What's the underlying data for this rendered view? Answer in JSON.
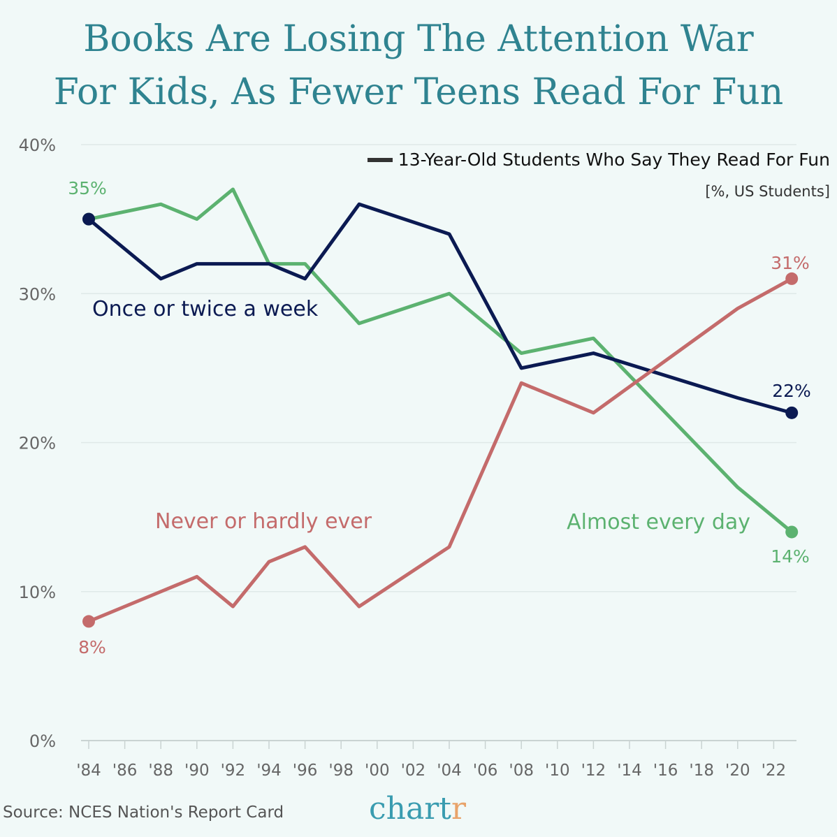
{
  "title_line1": "Books Are Losing The Attention War",
  "title_line2": "For Kids, As Fewer Teens Read For Fun",
  "legend_label": "13-Year-Old Students Who Say They Read For Fun",
  "unit_label": "[%, US Students]",
  "source": "Source: NCES Nation's Report Card",
  "logo": "chartr",
  "chart_data": {
    "type": "line",
    "x": [
      1984,
      1988,
      1990,
      1992,
      1994,
      1996,
      1999,
      2004,
      2008,
      2012,
      2020,
      2023
    ],
    "ylim": [
      0,
      40
    ],
    "xlim": [
      1983.5,
      2024
    ],
    "y_ticks": [
      "0%",
      "10%",
      "20%",
      "30%",
      "40%"
    ],
    "x_ticks": [
      "'84",
      "'86",
      "'88",
      "'90",
      "'92",
      "'94",
      "'96",
      "'98",
      "'00",
      "'02",
      "'04",
      "'06",
      "'08",
      "'10",
      "'12",
      "'14",
      "'16",
      "'18",
      "'20",
      "'22"
    ],
    "grid": true,
    "series": [
      {
        "name": "Almost every day",
        "color": "#5cb270",
        "values": [
          35,
          36,
          35,
          37,
          32,
          32,
          28,
          30,
          26,
          27,
          17,
          14
        ],
        "start_label": "35%",
        "end_label": "14%"
      },
      {
        "name": "Once or twice a week",
        "color": "#0b1a52",
        "values": [
          35,
          31,
          32,
          32,
          32,
          31,
          36,
          34,
          25,
          26,
          23,
          22
        ],
        "end_label": "22%"
      },
      {
        "name": "Never or hardly ever",
        "color": "#c46b6b",
        "values": [
          8,
          10,
          11,
          9,
          12,
          13,
          9,
          13,
          24,
          22,
          29,
          31
        ],
        "start_label": "8%",
        "end_label": "31%"
      }
    ]
  }
}
